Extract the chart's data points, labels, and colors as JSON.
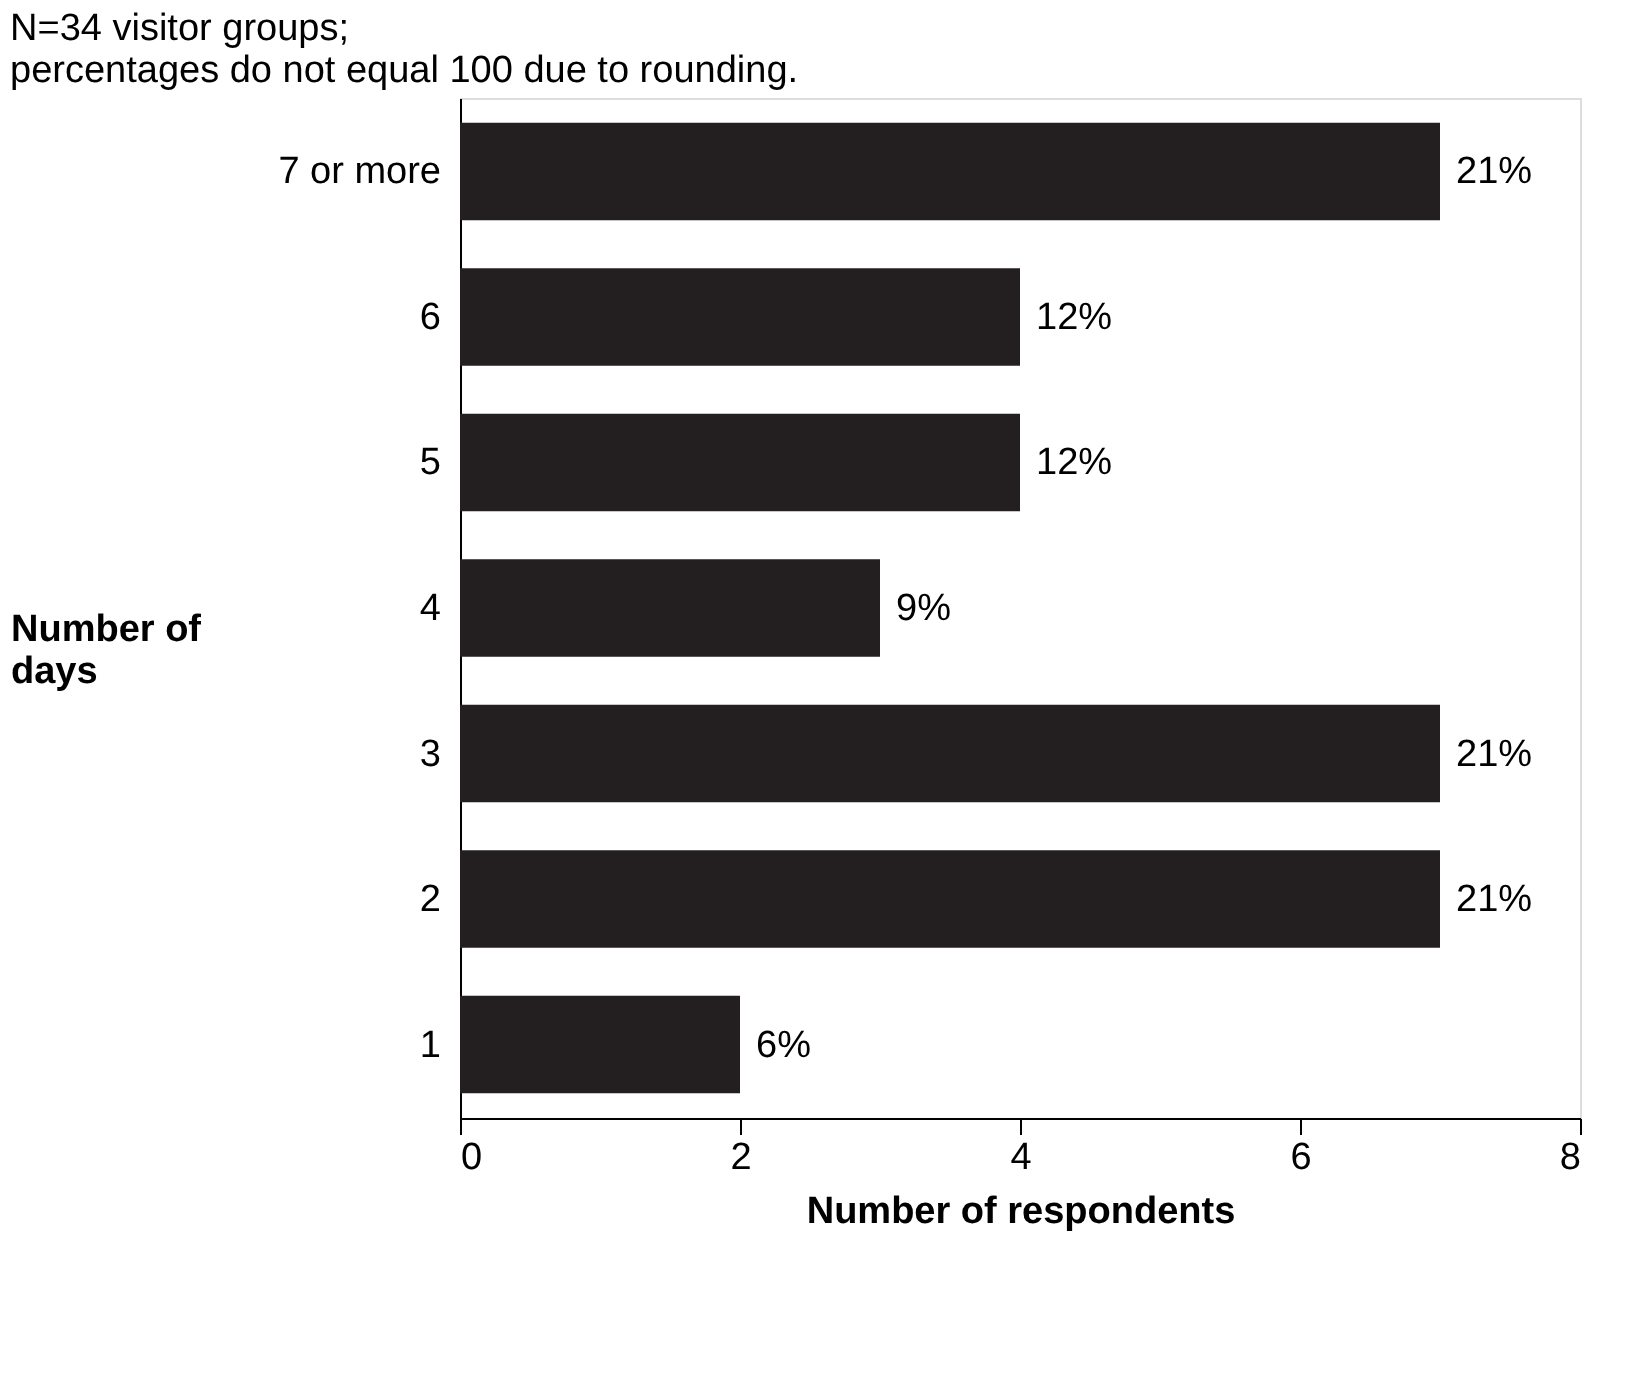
{
  "chart_data": {
    "type": "bar",
    "orientation": "horizontal",
    "subtitle": "N=34 visitor groups;\npercentages do not equal 100 due to rounding.",
    "xlabel": "Number of respondents",
    "ylabel": "Number of days",
    "categories": [
      "7 or more",
      "6",
      "5",
      "4",
      "3",
      "2",
      "1"
    ],
    "values": [
      7,
      4,
      4,
      3,
      7,
      7,
      2
    ],
    "annotations": [
      {
        "text": "21%",
        "x": 7,
        "y": "7 or more"
      },
      {
        "text": "12%",
        "x": 4,
        "y": "6"
      },
      {
        "text": "12%",
        "x": 4,
        "y": "5"
      },
      {
        "text": "9%",
        "x": 3,
        "y": "4"
      },
      {
        "text": "21%",
        "x": 7,
        "y": "3"
      },
      {
        "text": "21%",
        "x": 7,
        "y": "2"
      },
      {
        "text": "6%",
        "x": 2,
        "y": "1"
      }
    ],
    "color": "#231f20",
    "xlim": [
      0,
      8
    ],
    "xticks": [
      0,
      2,
      4,
      6,
      8
    ],
    "grid": false
  }
}
